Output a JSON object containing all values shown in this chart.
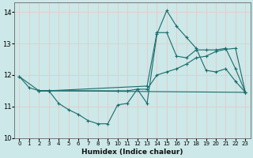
{
  "xlabel": "Humidex (Indice chaleur)",
  "background_color": "#cce8e8",
  "grid_color": "#e8c8c8",
  "line_color": "#1a6b6b",
  "xlim": [
    -0.5,
    23.5
  ],
  "ylim": [
    10,
    14.3
  ],
  "xticks": [
    0,
    1,
    2,
    3,
    4,
    5,
    6,
    7,
    8,
    9,
    10,
    11,
    12,
    13,
    14,
    15,
    16,
    17,
    18,
    19,
    20,
    21,
    22,
    23
  ],
  "yticks": [
    10,
    11,
    12,
    13,
    14
  ],
  "series": [
    {
      "x": [
        0,
        1,
        2,
        3,
        4,
        5,
        6,
        7,
        8,
        9,
        10,
        11,
        12,
        13,
        14,
        15,
        16,
        17,
        18,
        19,
        20,
        21,
        22,
        23
      ],
      "y": [
        11.95,
        11.6,
        11.5,
        11.5,
        11.1,
        10.9,
        10.75,
        10.55,
        10.45,
        10.45,
        11.05,
        11.1,
        11.55,
        11.1,
        13.3,
        14.05,
        13.55,
        13.2,
        12.85,
        12.15,
        12.1,
        12.2,
        11.8,
        11.45
      ]
    },
    {
      "x": [
        2,
        3,
        13,
        14,
        15,
        16,
        17,
        18,
        19,
        20,
        21,
        22,
        23
      ],
      "y": [
        11.5,
        11.5,
        11.65,
        13.35,
        13.35,
        12.6,
        12.55,
        12.8,
        12.8,
        12.8,
        12.85,
        12.2,
        11.45
      ]
    },
    {
      "x": [
        2,
        3,
        10,
        11,
        12,
        13,
        14,
        15,
        16,
        17,
        18,
        19,
        20,
        21,
        22,
        23
      ],
      "y": [
        11.5,
        11.5,
        11.5,
        11.5,
        11.55,
        11.55,
        12.0,
        12.1,
        12.2,
        12.35,
        12.55,
        12.6,
        12.75,
        12.82,
        12.85,
        11.45
      ]
    },
    {
      "x": [
        0,
        2,
        3,
        23
      ],
      "y": [
        11.95,
        11.5,
        11.5,
        11.45
      ]
    }
  ]
}
